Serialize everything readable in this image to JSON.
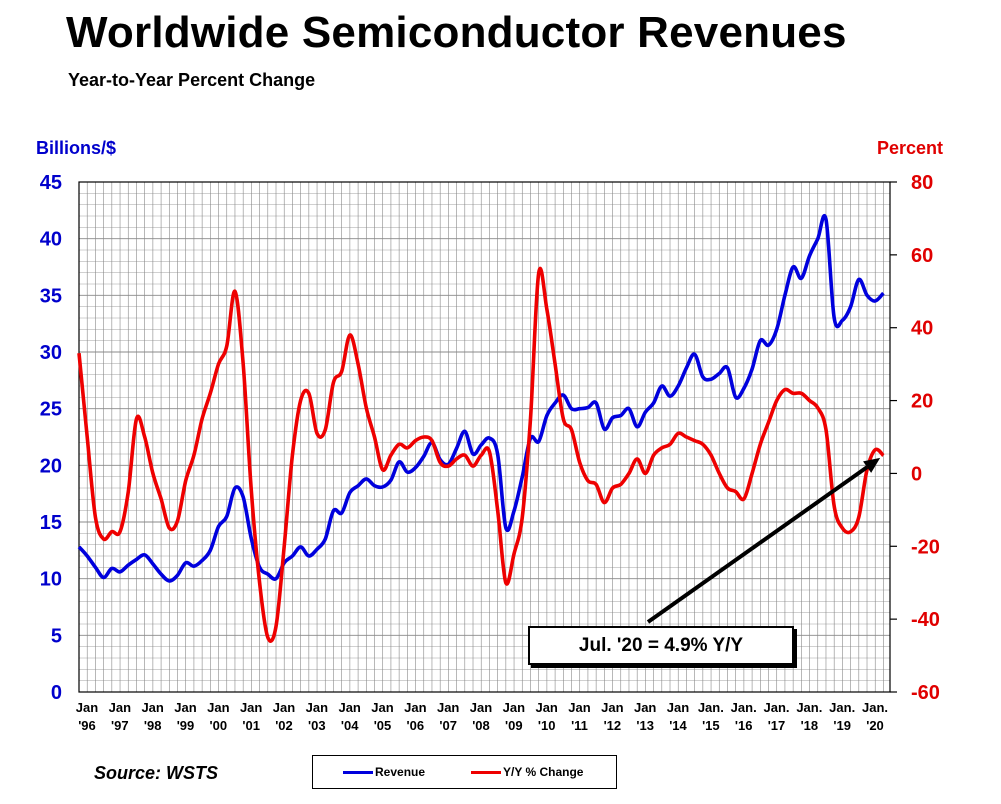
{
  "page": {
    "title": "Worldwide Semiconductor Revenues",
    "subtitle": "Year-to-Year Percent Change",
    "source": "Source: WSTS"
  },
  "callout": {
    "text": "Jul. '20 = 4.9% Y/Y",
    "target_date": "Jul 2020",
    "target_value": 4.9
  },
  "colors": {
    "revenue": "#0000dd",
    "yoy": "#ee0000",
    "left_axis": "#0000cc",
    "right_axis": "#e00000",
    "grid": "#888888"
  },
  "chart_data": {
    "type": "line",
    "title": "Worldwide Semiconductor Revenues",
    "subtitle": "Year-to-Year Percent Change",
    "x_axis": {
      "start": "Jan 1996",
      "end": "Jul 2020",
      "tick_labels": [
        [
          "Jan",
          "'96"
        ],
        [
          "Jan",
          "'97"
        ],
        [
          "Jan",
          "'98"
        ],
        [
          "Jan",
          "'99"
        ],
        [
          "Jan",
          "'00"
        ],
        [
          "Jan",
          "'01"
        ],
        [
          "Jan",
          "'02"
        ],
        [
          "Jan",
          "'03"
        ],
        [
          "Jan",
          "'04"
        ],
        [
          "Jan",
          "'05"
        ],
        [
          "Jan",
          "'06"
        ],
        [
          "Jan",
          "'07"
        ],
        [
          "Jan",
          "'08"
        ],
        [
          "Jan",
          "'09"
        ],
        [
          "Jan",
          "'10"
        ],
        [
          "Jan",
          "'11"
        ],
        [
          "Jan",
          "'12"
        ],
        [
          "Jan",
          "'13"
        ],
        [
          "Jan",
          "'14"
        ],
        [
          "Jan.",
          "'15"
        ],
        [
          "Jan.",
          "'16"
        ],
        [
          "Jan.",
          "'17"
        ],
        [
          "Jan.",
          "'18"
        ],
        [
          "Jan.",
          "'19"
        ],
        [
          "Jan.",
          "'20"
        ]
      ]
    },
    "y_left": {
      "label": "Billions/$",
      "ylim": [
        0,
        45
      ],
      "ticks": [
        0,
        5,
        10,
        15,
        20,
        25,
        30,
        35,
        40,
        45
      ]
    },
    "y_right": {
      "label": "Percent",
      "ylim": [
        -60,
        80
      ],
      "ticks": [
        -60,
        -40,
        -20,
        0,
        20,
        40,
        60,
        80
      ]
    },
    "grid": true,
    "legend_position": "bottom",
    "series": [
      {
        "name": "Revenue",
        "axis": "left",
        "points": [
          [
            "Jan 1996",
            12.8
          ],
          [
            "Apr 1996",
            12.0
          ],
          [
            "Jul 1996",
            11.0
          ],
          [
            "Oct 1996",
            10.1
          ],
          [
            "Jan 1997",
            10.9
          ],
          [
            "Apr 1997",
            10.6
          ],
          [
            "Jul 1997",
            11.2
          ],
          [
            "Oct 1997",
            11.7
          ],
          [
            "Jan 1998",
            12.1
          ],
          [
            "Apr 1998",
            11.3
          ],
          [
            "Jul 1998",
            10.4
          ],
          [
            "Oct 1998",
            9.8
          ],
          [
            "Jan 1999",
            10.3
          ],
          [
            "Apr 1999",
            11.4
          ],
          [
            "Jul 1999",
            11.1
          ],
          [
            "Oct 1999",
            11.6
          ],
          [
            "Jan 2000",
            12.5
          ],
          [
            "Apr 2000",
            14.6
          ],
          [
            "Jul 2000",
            15.5
          ],
          [
            "Oct 2000",
            18.0
          ],
          [
            "Jan 2001",
            17.2
          ],
          [
            "Apr 2001",
            13.5
          ],
          [
            "Jul 2001",
            11.0
          ],
          [
            "Oct 2001",
            10.4
          ],
          [
            "Jan 2002",
            10.0
          ],
          [
            "Apr 2002",
            11.4
          ],
          [
            "Jul 2002",
            12.0
          ],
          [
            "Oct 2002",
            12.8
          ],
          [
            "Jan 2003",
            12.0
          ],
          [
            "Apr 2003",
            12.6
          ],
          [
            "Jul 2003",
            13.5
          ],
          [
            "Oct 2003",
            16.0
          ],
          [
            "Jan 2004",
            15.8
          ],
          [
            "Apr 2004",
            17.6
          ],
          [
            "Jul 2004",
            18.2
          ],
          [
            "Oct 2004",
            18.8
          ],
          [
            "Jan 2005",
            18.2
          ],
          [
            "Apr 2005",
            18.1
          ],
          [
            "Jul 2005",
            18.7
          ],
          [
            "Oct 2005",
            20.3
          ],
          [
            "Jan 2006",
            19.4
          ],
          [
            "Apr 2006",
            19.8
          ],
          [
            "Jul 2006",
            20.8
          ],
          [
            "Oct 2006",
            22.0
          ],
          [
            "Jan 2007",
            20.5
          ],
          [
            "Apr 2007",
            20.1
          ],
          [
            "Jul 2007",
            21.5
          ],
          [
            "Oct 2007",
            23.0
          ],
          [
            "Jan 2008",
            21.0
          ],
          [
            "Apr 2008",
            21.8
          ],
          [
            "Jul 2008",
            22.4
          ],
          [
            "Oct 2008",
            21.0
          ],
          [
            "Jan 2009",
            14.5
          ],
          [
            "Apr 2009",
            16.0
          ],
          [
            "Jul 2009",
            19.0
          ],
          [
            "Oct 2009",
            22.4
          ],
          [
            "Jan 2010",
            22.1
          ],
          [
            "Apr 2010",
            24.4
          ],
          [
            "Jul 2010",
            25.5
          ],
          [
            "Oct 2010",
            26.2
          ],
          [
            "Jan 2011",
            25.0
          ],
          [
            "Apr 2011",
            25.0
          ],
          [
            "Jul 2011",
            25.1
          ],
          [
            "Oct 2011",
            25.5
          ],
          [
            "Jan 2012",
            23.2
          ],
          [
            "Apr 2012",
            24.2
          ],
          [
            "Jul 2012",
            24.4
          ],
          [
            "Oct 2012",
            25.0
          ],
          [
            "Jan 2013",
            23.4
          ],
          [
            "Apr 2013",
            24.7
          ],
          [
            "Jul 2013",
            25.5
          ],
          [
            "Oct 2013",
            27.0
          ],
          [
            "Jan 2014",
            26.1
          ],
          [
            "Apr 2014",
            27.0
          ],
          [
            "Jul 2014",
            28.6
          ],
          [
            "Oct 2014",
            29.8
          ],
          [
            "Jan 2015",
            27.8
          ],
          [
            "Apr 2015",
            27.6
          ],
          [
            "Jul 2015",
            28.1
          ],
          [
            "Oct 2015",
            28.6
          ],
          [
            "Jan 2016",
            26.0
          ],
          [
            "Apr 2016",
            26.8
          ],
          [
            "Jul 2016",
            28.5
          ],
          [
            "Oct 2016",
            31.0
          ],
          [
            "Jan 2017",
            30.6
          ],
          [
            "Apr 2017",
            32.0
          ],
          [
            "Jul 2017",
            35.0
          ],
          [
            "Oct 2017",
            37.5
          ],
          [
            "Jan 2018",
            36.5
          ],
          [
            "Apr 2018",
            38.5
          ],
          [
            "Jul 2018",
            40.0
          ],
          [
            "Oct 2018",
            41.7
          ],
          [
            "Jan 2019",
            33.0
          ],
          [
            "Apr 2019",
            32.8
          ],
          [
            "Jul 2019",
            34.0
          ],
          [
            "Oct 2019",
            36.4
          ],
          [
            "Jan 2020",
            35.0
          ],
          [
            "Apr 2020",
            34.5
          ],
          [
            "Jul 2020",
            35.2
          ]
        ]
      },
      {
        "name": "Y/Y % Change",
        "axis": "right",
        "points": [
          [
            "Jan 1996",
            33.0
          ],
          [
            "Apr 1996",
            10.0
          ],
          [
            "Jul 1996",
            -12.0
          ],
          [
            "Oct 1996",
            -18.0
          ],
          [
            "Jan 1997",
            -16.0
          ],
          [
            "Apr 1997",
            -16.0
          ],
          [
            "Jul 1997",
            -5.0
          ],
          [
            "Oct 1997",
            15.0
          ],
          [
            "Jan 1998",
            10.0
          ],
          [
            "Apr 1998",
            0.0
          ],
          [
            "Jul 1998",
            -7.0
          ],
          [
            "Oct 1998",
            -15.0
          ],
          [
            "Jan 1999",
            -13.0
          ],
          [
            "Apr 1999",
            -2.0
          ],
          [
            "Jul 1999",
            5.0
          ],
          [
            "Oct 1999",
            15.0
          ],
          [
            "Jan 2000",
            22.0
          ],
          [
            "Apr 2000",
            30.0
          ],
          [
            "Jul 2000",
            35.0
          ],
          [
            "Oct 2000",
            50.0
          ],
          [
            "Jan 2001",
            30.0
          ],
          [
            "Apr 2001",
            -5.0
          ],
          [
            "Jul 2001",
            -30.0
          ],
          [
            "Oct 2001",
            -45.0
          ],
          [
            "Jan 2002",
            -42.0
          ],
          [
            "Apr 2002",
            -20.0
          ],
          [
            "Jul 2002",
            5.0
          ],
          [
            "Oct 2002",
            20.0
          ],
          [
            "Jan 2003",
            22.0
          ],
          [
            "Apr 2003",
            11.0
          ],
          [
            "Jul 2003",
            12.0
          ],
          [
            "Oct 2003",
            25.0
          ],
          [
            "Jan 2004",
            28.0
          ],
          [
            "Apr 2004",
            38.0
          ],
          [
            "Jul 2004",
            30.0
          ],
          [
            "Oct 2004",
            18.0
          ],
          [
            "Jan 2005",
            10.0
          ],
          [
            "Apr 2005",
            1.0
          ],
          [
            "Jul 2005",
            5.0
          ],
          [
            "Oct 2005",
            8.0
          ],
          [
            "Jan 2006",
            7.0
          ],
          [
            "Apr 2006",
            9.0
          ],
          [
            "Jul 2006",
            10.0
          ],
          [
            "Oct 2006",
            9.0
          ],
          [
            "Jan 2007",
            3.0
          ],
          [
            "Apr 2007",
            2.0
          ],
          [
            "Jul 2007",
            4.0
          ],
          [
            "Oct 2007",
            5.0
          ],
          [
            "Jan 2008",
            2.0
          ],
          [
            "Apr 2008",
            5.0
          ],
          [
            "Jul 2008",
            6.0
          ],
          [
            "Oct 2008",
            -10.0
          ],
          [
            "Jan 2009",
            -30.0
          ],
          [
            "Apr 2009",
            -22.0
          ],
          [
            "Jul 2009",
            -12.0
          ],
          [
            "Oct 2009",
            15.0
          ],
          [
            "Jan 2010",
            55.0
          ],
          [
            "Apr 2010",
            45.0
          ],
          [
            "Jul 2010",
            30.0
          ],
          [
            "Oct 2010",
            15.0
          ],
          [
            "Jan 2011",
            12.0
          ],
          [
            "Apr 2011",
            3.0
          ],
          [
            "Jul 2011",
            -2.0
          ],
          [
            "Oct 2011",
            -3.0
          ],
          [
            "Jan 2012",
            -8.0
          ],
          [
            "Apr 2012",
            -4.0
          ],
          [
            "Jul 2012",
            -3.0
          ],
          [
            "Oct 2012",
            0.0
          ],
          [
            "Jan 2013",
            4.0
          ],
          [
            "Apr 2013",
            0.0
          ],
          [
            "Jul 2013",
            5.0
          ],
          [
            "Oct 2013",
            7.0
          ],
          [
            "Jan 2014",
            8.0
          ],
          [
            "Apr 2014",
            11.0
          ],
          [
            "Jul 2014",
            10.0
          ],
          [
            "Oct 2014",
            9.0
          ],
          [
            "Jan 2015",
            8.0
          ],
          [
            "Apr 2015",
            5.0
          ],
          [
            "Jul 2015",
            0.0
          ],
          [
            "Oct 2015",
            -4.0
          ],
          [
            "Jan 2016",
            -5.0
          ],
          [
            "Apr 2016",
            -7.0
          ],
          [
            "Jul 2016",
            0.0
          ],
          [
            "Oct 2016",
            8.0
          ],
          [
            "Jan 2017",
            14.0
          ],
          [
            "Apr 2017",
            20.0
          ],
          [
            "Jul 2017",
            23.0
          ],
          [
            "Oct 2017",
            22.0
          ],
          [
            "Jan 2018",
            22.0
          ],
          [
            "Apr 2018",
            20.0
          ],
          [
            "Jul 2018",
            18.0
          ],
          [
            "Oct 2018",
            12.0
          ],
          [
            "Jan 2019",
            -9.0
          ],
          [
            "Apr 2019",
            -15.0
          ],
          [
            "Jul 2019",
            -16.0
          ],
          [
            "Oct 2019",
            -12.0
          ],
          [
            "Jan 2020",
            1.0
          ],
          [
            "Apr 2020",
            6.5
          ],
          [
            "Jul 2020",
            4.9
          ]
        ]
      }
    ]
  }
}
